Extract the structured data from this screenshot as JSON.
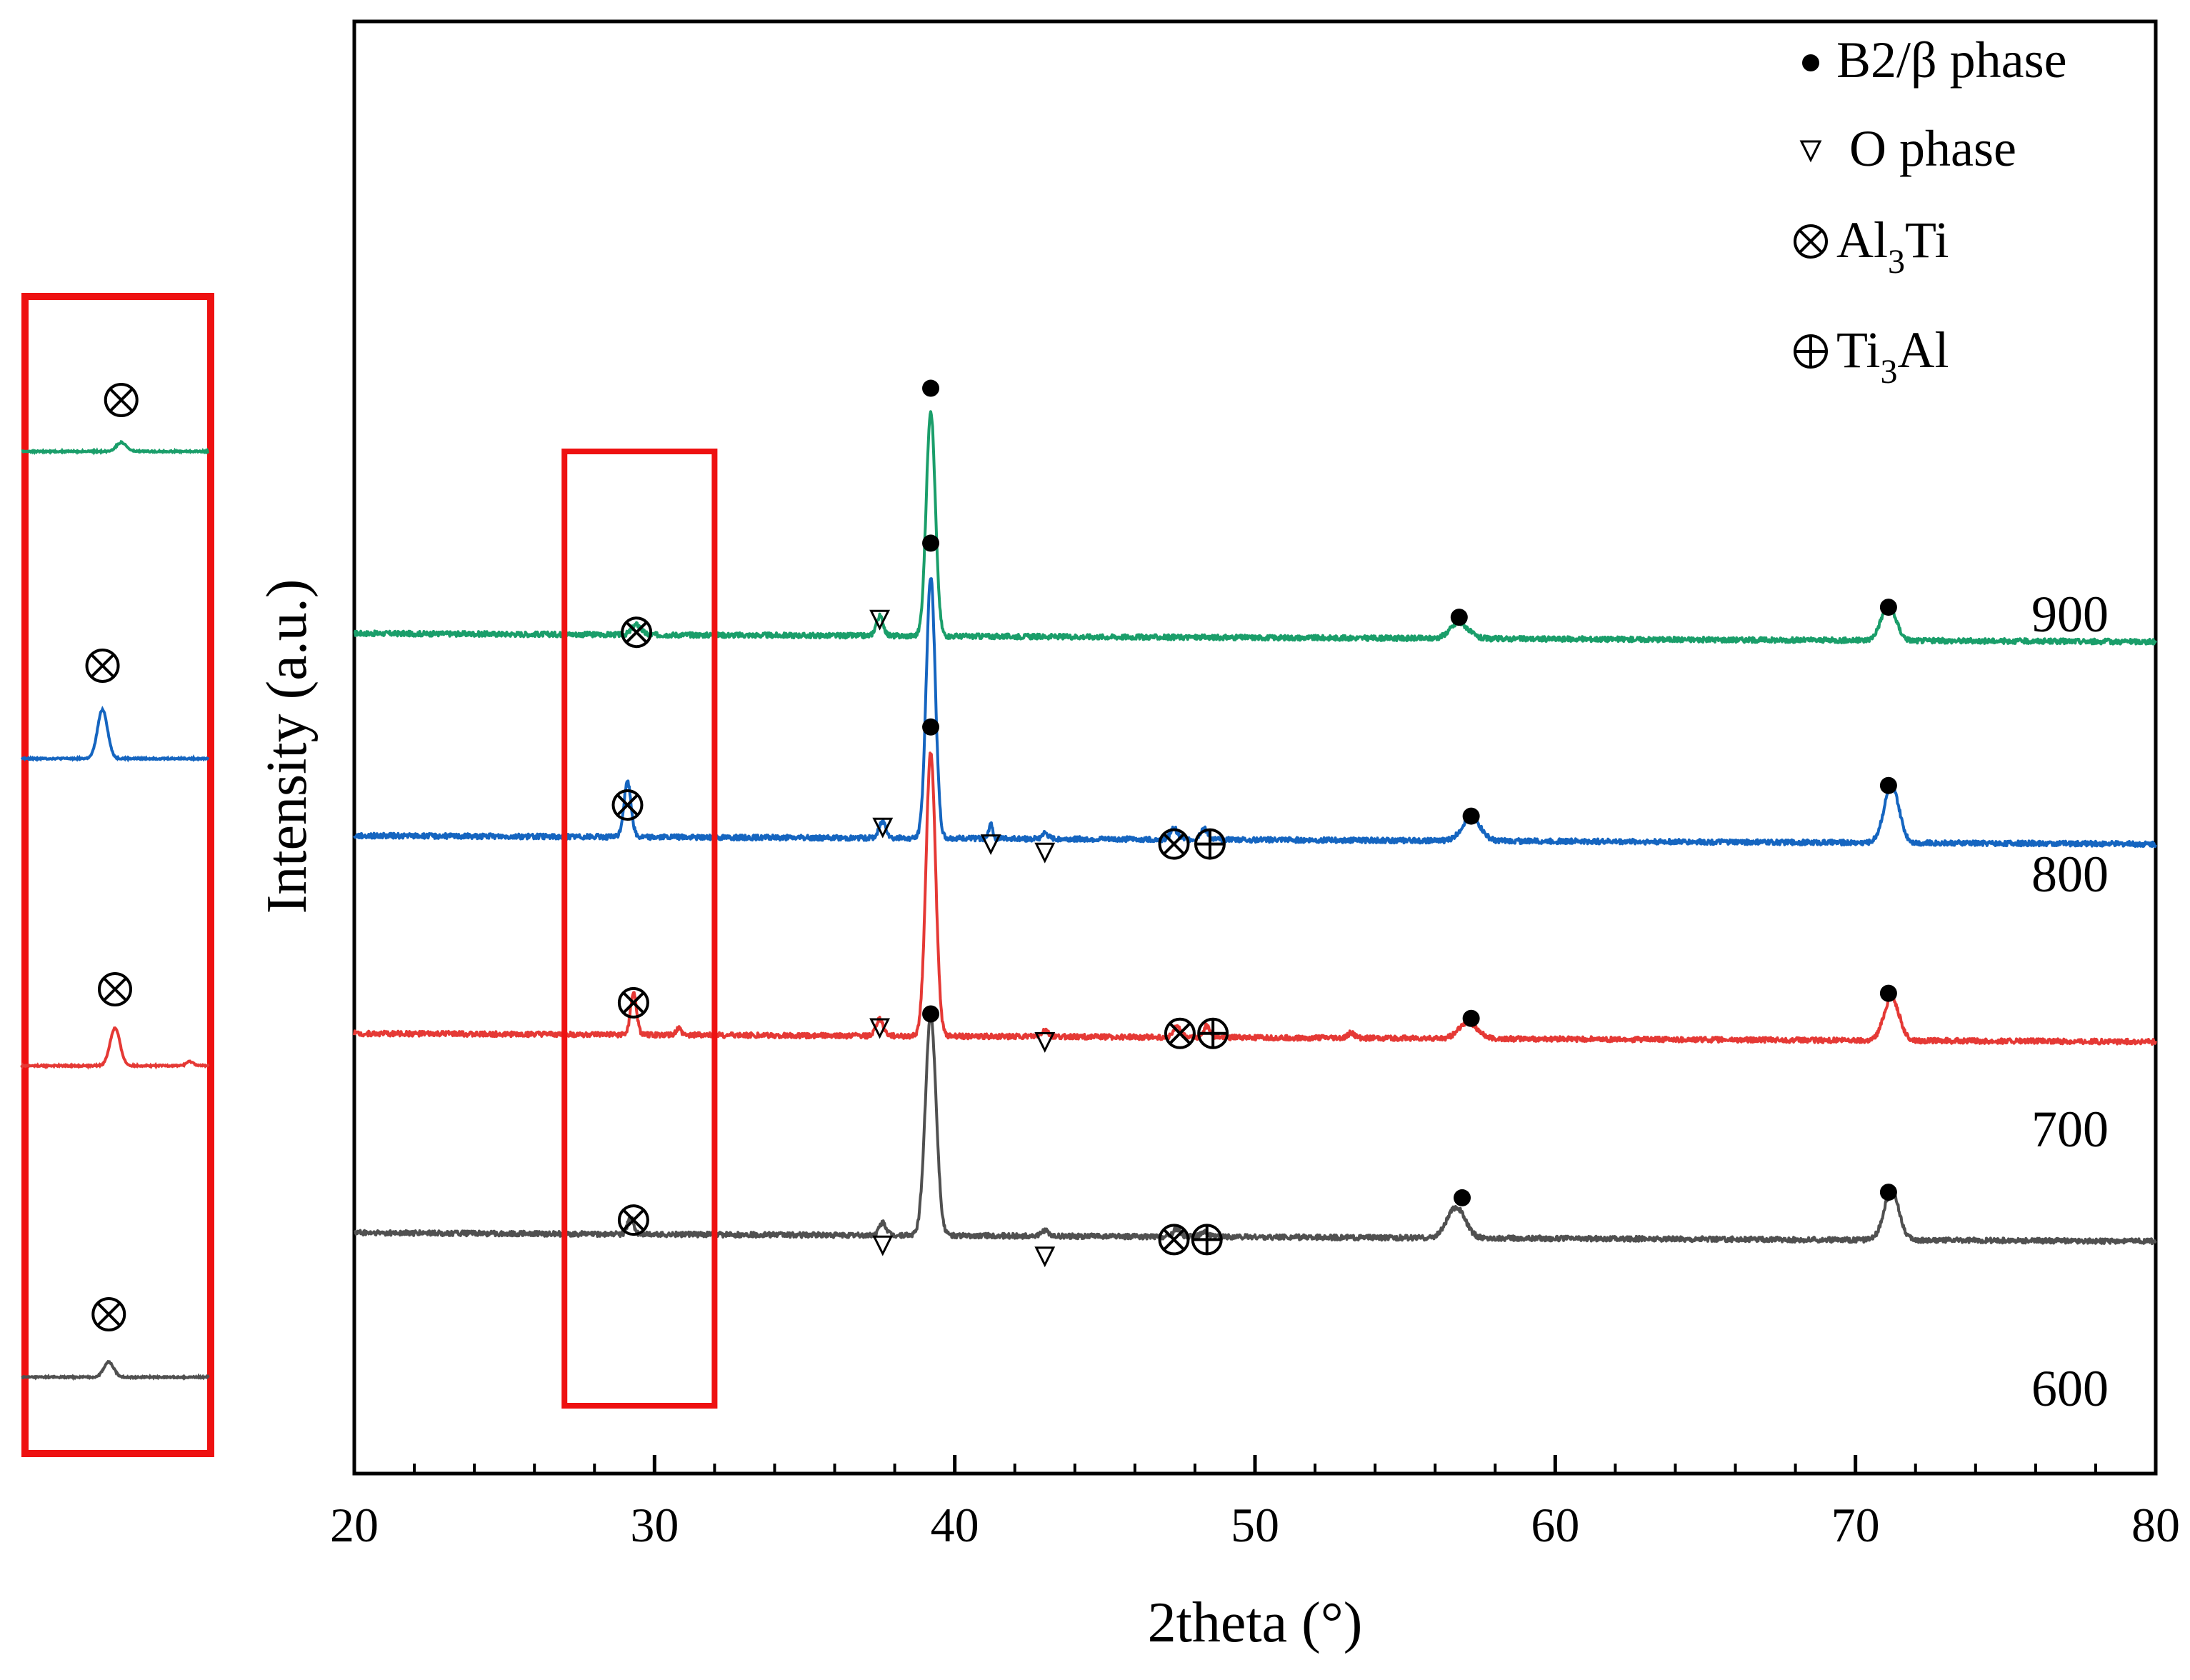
{
  "chart_data": {
    "type": "line",
    "title": "",
    "xlabel": "2theta (°)",
    "ylabel": "Intensity (a.u.)",
    "xlim": [
      20,
      80
    ],
    "x_ticks": [
      "20",
      "30",
      "40",
      "50",
      "60",
      "70",
      "80"
    ],
    "grid": false,
    "legend_position": "top-right",
    "legend": [
      {
        "symbol": "●",
        "label": "B2/β phase"
      },
      {
        "symbol": "▽",
        "label": "O phase"
      },
      {
        "symbol": "⊗",
        "label": "Al",
        "sub": "3",
        "suffix": "Ti"
      },
      {
        "symbol": "⊕",
        "label": "Ti",
        "sub": "3",
        "suffix": "Al"
      }
    ],
    "series": [
      {
        "name": "900",
        "color": "#1a9e6a",
        "baseline": 0.98,
        "peaks": [
          [
            29.4,
            0.18,
            0.15
          ],
          [
            37.5,
            0.35,
            0.12
          ],
          [
            39.2,
            4.05,
            0.15
          ],
          [
            56.8,
            0.28,
            0.3
          ],
          [
            71.1,
            0.62,
            0.25
          ]
        ],
        "markers": [
          {
            "x": 29.4,
            "y": 1.0,
            "symbol": "⊗"
          },
          {
            "x": 37.5,
            "y": 1.23,
            "symbol": "▽"
          },
          {
            "x": 39.2,
            "y": 5.38,
            "symbol": "●"
          },
          {
            "x": 56.8,
            "y": 1.27,
            "symbol": "●"
          },
          {
            "x": 71.1,
            "y": 1.45,
            "symbol": "●"
          }
        ]
      },
      {
        "name": "800",
        "color": "#1565c0",
        "baseline": 0.95,
        "peaks": [
          [
            29.1,
            0.98,
            0.12
          ],
          [
            37.6,
            0.3,
            0.12
          ],
          [
            39.2,
            4.7,
            0.15
          ],
          [
            41.2,
            0.28,
            0.06
          ],
          [
            43.0,
            0.1,
            0.1
          ],
          [
            47.3,
            0.2,
            0.12
          ],
          [
            48.3,
            0.2,
            0.12
          ],
          [
            57.2,
            0.42,
            0.3
          ],
          [
            71.2,
            1.02,
            0.25
          ]
        ],
        "markers": [
          {
            "x": 29.1,
            "y": 1.5,
            "symbol": "⊗"
          },
          {
            "x": 37.6,
            "y": 1.1,
            "symbol": "▽"
          },
          {
            "x": 39.2,
            "y": 6.2,
            "symbol": "●"
          },
          {
            "x": 41.2,
            "y": 0.8,
            "symbol": "▽"
          },
          {
            "x": 43.0,
            "y": 0.65,
            "symbol": "▽"
          },
          {
            "x": 47.3,
            "y": 0.8,
            "symbol": "⊗"
          },
          {
            "x": 48.5,
            "y": 0.8,
            "symbol": "⊕"
          },
          {
            "x": 57.2,
            "y": 1.3,
            "symbol": "●"
          },
          {
            "x": 71.1,
            "y": 1.85,
            "symbol": "●"
          }
        ]
      },
      {
        "name": "700",
        "color": "#e53935",
        "baseline": 1.0,
        "peaks": [
          [
            29.3,
            0.75,
            0.1
          ],
          [
            30.8,
            0.12,
            0.08
          ],
          [
            37.5,
            0.3,
            0.12
          ],
          [
            39.2,
            5.1,
            0.16
          ],
          [
            43.0,
            0.12,
            0.1
          ],
          [
            47.4,
            0.18,
            0.12
          ],
          [
            48.4,
            0.2,
            0.12
          ],
          [
            53.2,
            0.1,
            0.1
          ],
          [
            57.1,
            0.3,
            0.3
          ],
          [
            71.2,
            0.78,
            0.25
          ]
        ],
        "markers": [
          {
            "x": 29.3,
            "y": 1.55,
            "symbol": "⊗"
          },
          {
            "x": 37.5,
            "y": 1.1,
            "symbol": "▽"
          },
          {
            "x": 39.2,
            "y": 6.5,
            "symbol": "●"
          },
          {
            "x": 43.0,
            "y": 0.85,
            "symbol": "▽"
          },
          {
            "x": 47.5,
            "y": 1.0,
            "symbol": "⊗"
          },
          {
            "x": 48.6,
            "y": 1.0,
            "symbol": "⊕"
          },
          {
            "x": 57.2,
            "y": 1.27,
            "symbol": "●"
          },
          {
            "x": 71.1,
            "y": 1.72,
            "symbol": "●"
          }
        ]
      },
      {
        "name": "600",
        "color": "#505050",
        "baseline": 1.02,
        "peaks": [
          [
            29.2,
            0.3,
            0.1
          ],
          [
            37.6,
            0.22,
            0.12
          ],
          [
            39.2,
            3.95,
            0.18
          ],
          [
            43.0,
            0.1,
            0.1
          ],
          [
            47.4,
            0.15,
            0.12
          ],
          [
            48.3,
            0.1,
            0.12
          ],
          [
            56.7,
            0.55,
            0.3
          ],
          [
            71.2,
            0.88,
            0.25
          ]
        ],
        "markers": [
          {
            "x": 29.3,
            "y": 1.25,
            "symbol": "⊗"
          },
          {
            "x": 37.6,
            "y": 0.8,
            "symbol": "▽"
          },
          {
            "x": 39.2,
            "y": 4.95,
            "symbol": "●"
          },
          {
            "x": 43.0,
            "y": 0.6,
            "symbol": "▽"
          },
          {
            "x": 47.3,
            "y": 0.9,
            "symbol": "⊗"
          },
          {
            "x": 48.4,
            "y": 0.9,
            "symbol": "⊕"
          },
          {
            "x": 56.9,
            "y": 1.65,
            "symbol": "●"
          },
          {
            "x": 71.1,
            "y": 1.75,
            "symbol": "●"
          }
        ]
      }
    ],
    "highlight_box": {
      "x_range": [
        27,
        32
      ],
      "description": "Al3Ti peak region"
    },
    "inset": {
      "description": "magnified Al3Ti peak for each temperature",
      "marker_symbol": "⊗",
      "series_order": [
        "900",
        "800",
        "700",
        "600"
      ]
    }
  }
}
